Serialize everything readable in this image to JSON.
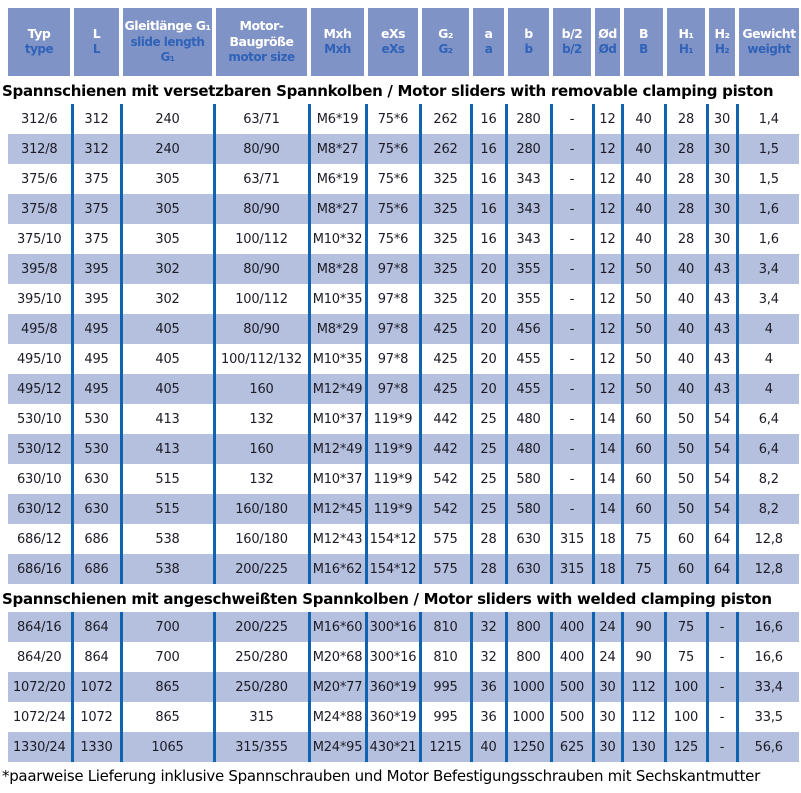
{
  "page": {
    "footnote": "*paarweise Lieferung inklusive Spannschrauben und Motor Befestigungsschrauben mit Sechskantmutter"
  },
  "colors": {
    "header_bg": "#8093c6",
    "header_text_de": "#ffffff",
    "header_text_en": "#2f62b8",
    "row_stripe": "#b5c0df",
    "column_divider": "#1063ae",
    "cell_text": "#1c1c26"
  },
  "table": {
    "columns": [
      {
        "de": "Typ",
        "en": "type"
      },
      {
        "de": "L",
        "en": "L"
      },
      {
        "de": "Gleitlänge G₁",
        "en": "slide length G₁"
      },
      {
        "de": "Motor-\nBaugröße",
        "en": "motor size"
      },
      {
        "de": "Mxh",
        "en": "Mxh"
      },
      {
        "de": "eXs",
        "en": "eXs"
      },
      {
        "de": "G₂",
        "en": "G₂"
      },
      {
        "de": "a",
        "en": "a"
      },
      {
        "de": "b",
        "en": "b"
      },
      {
        "de": "b/2",
        "en": "b/2"
      },
      {
        "de": "Ød",
        "en": "Ød"
      },
      {
        "de": "B",
        "en": "B"
      },
      {
        "de": "H₁",
        "en": "H₁"
      },
      {
        "de": "H₂",
        "en": "H₂"
      },
      {
        "de": "Gewicht",
        "en": "weight"
      }
    ],
    "sections": [
      {
        "title": "Spannschienen mit versetzbaren Spannkolben / Motor sliders with removable clamping piston",
        "first_row_shaded": false,
        "rows": [
          [
            "312/6",
            "312",
            "240",
            "63/71",
            "M6*19",
            "75*6",
            "262",
            "16",
            "280",
            "-",
            "12",
            "40",
            "28",
            "30",
            "1,4"
          ],
          [
            "312/8",
            "312",
            "240",
            "80/90",
            "M8*27",
            "75*6",
            "262",
            "16",
            "280",
            "-",
            "12",
            "40",
            "28",
            "30",
            "1,5"
          ],
          [
            "375/6",
            "375",
            "305",
            "63/71",
            "M6*19",
            "75*6",
            "325",
            "16",
            "343",
            "-",
            "12",
            "40",
            "28",
            "30",
            "1,5"
          ],
          [
            "375/8",
            "375",
            "305",
            "80/90",
            "M8*27",
            "75*6",
            "325",
            "16",
            "343",
            "-",
            "12",
            "40",
            "28",
            "30",
            "1,6"
          ],
          [
            "375/10",
            "375",
            "305",
            "100/112",
            "M10*32",
            "75*6",
            "325",
            "16",
            "343",
            "-",
            "12",
            "40",
            "28",
            "30",
            "1,6"
          ],
          [
            "395/8",
            "395",
            "302",
            "80/90",
            "M8*28",
            "97*8",
            "325",
            "20",
            "355",
            "-",
            "12",
            "50",
            "40",
            "43",
            "3,4"
          ],
          [
            "395/10",
            "395",
            "302",
            "100/112",
            "M10*35",
            "97*8",
            "325",
            "20",
            "355",
            "-",
            "12",
            "50",
            "40",
            "43",
            "3,4"
          ],
          [
            "495/8",
            "495",
            "405",
            "80/90",
            "M8*29",
            "97*8",
            "425",
            "20",
            "456",
            "-",
            "12",
            "50",
            "40",
            "43",
            "4"
          ],
          [
            "495/10",
            "495",
            "405",
            "100/112/132",
            "M10*35",
            "97*8",
            "425",
            "20",
            "455",
            "-",
            "12",
            "50",
            "40",
            "43",
            "4"
          ],
          [
            "495/12",
            "495",
            "405",
            "160",
            "M12*49",
            "97*8",
            "425",
            "20",
            "455",
            "-",
            "12",
            "50",
            "40",
            "43",
            "4"
          ],
          [
            "530/10",
            "530",
            "413",
            "132",
            "M10*37",
            "119*9",
            "442",
            "25",
            "480",
            "-",
            "14",
            "60",
            "50",
            "54",
            "6,4"
          ],
          [
            "530/12",
            "530",
            "413",
            "160",
            "M12*49",
            "119*9",
            "442",
            "25",
            "480",
            "-",
            "14",
            "60",
            "50",
            "54",
            "6,4"
          ],
          [
            "630/10",
            "630",
            "515",
            "132",
            "M10*37",
            "119*9",
            "542",
            "25",
            "580",
            "-",
            "14",
            "60",
            "50",
            "54",
            "8,2"
          ],
          [
            "630/12",
            "630",
            "515",
            "160/180",
            "M12*45",
            "119*9",
            "542",
            "25",
            "580",
            "-",
            "14",
            "60",
            "50",
            "54",
            "8,2"
          ],
          [
            "686/12",
            "686",
            "538",
            "160/180",
            "M12*43",
            "154*12",
            "575",
            "28",
            "630",
            "315",
            "18",
            "75",
            "60",
            "64",
            "12,8"
          ],
          [
            "686/16",
            "686",
            "538",
            "200/225",
            "M16*62",
            "154*12",
            "575",
            "28",
            "630",
            "315",
            "18",
            "75",
            "60",
            "64",
            "12,8"
          ]
        ]
      },
      {
        "title": "Spannschienen mit angeschweißten Spannkolben / Motor sliders with welded clamping piston",
        "first_row_shaded": true,
        "rows": [
          [
            "864/16",
            "864",
            "700",
            "200/225",
            "M16*60",
            "300*16",
            "810",
            "32",
            "800",
            "400",
            "24",
            "90",
            "75",
            "-",
            "16,6"
          ],
          [
            "864/20",
            "864",
            "700",
            "250/280",
            "M20*68",
            "300*16",
            "810",
            "32",
            "800",
            "400",
            "24",
            "90",
            "75",
            "-",
            "16,6"
          ],
          [
            "1072/20",
            "1072",
            "865",
            "250/280",
            "M20*77",
            "360*19",
            "995",
            "36",
            "1000",
            "500",
            "30",
            "112",
            "100",
            "-",
            "33,4"
          ],
          [
            "1072/24",
            "1072",
            "865",
            "315",
            "M24*88",
            "360*19",
            "995",
            "36",
            "1000",
            "500",
            "30",
            "112",
            "100",
            "-",
            "33,5"
          ],
          [
            "1330/24",
            "1330",
            "1065",
            "315/355",
            "M24*95",
            "430*21",
            "1215",
            "40",
            "1250",
            "625",
            "30",
            "130",
            "125",
            "-",
            "56,6"
          ]
        ]
      }
    ]
  }
}
